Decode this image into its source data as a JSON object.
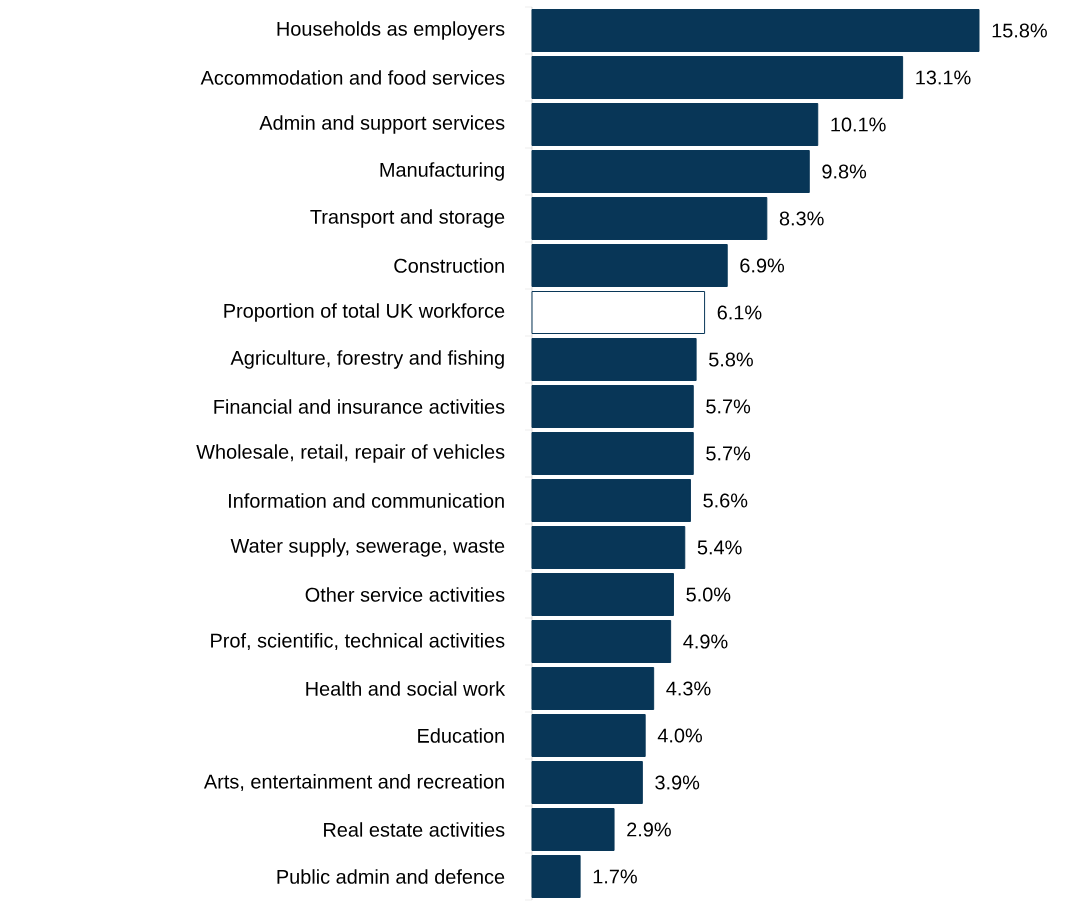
{
  "chart_data": {
    "type": "bar",
    "orientation": "horizontal",
    "categories": [
      "Households as employers",
      "Accommodation and food services",
      "Admin and support services",
      "Manufacturing",
      "Transport and storage",
      "Construction",
      "Proportion of total UK workforce",
      "Agriculture, forestry and fishing",
      "Financial and insurance activities",
      "Wholesale, retail, repair of vehicles",
      "Information and communication",
      "Water supply, sewerage, waste",
      "Other service activities",
      "Prof, scientific, technical activities",
      "Health and social work",
      "Education",
      "Arts, entertainment and recreation",
      "Real estate activities",
      "Public admin and defence"
    ],
    "values": [
      15.8,
      13.1,
      10.1,
      9.8,
      8.3,
      6.9,
      6.1,
      5.8,
      5.7,
      5.7,
      5.6,
      5.4,
      5.0,
      4.9,
      4.3,
      4.0,
      3.9,
      2.9,
      1.7
    ],
    "value_labels": [
      "15.8%",
      "13.1%",
      "10.1%",
      "9.8%",
      "8.3%",
      "6.9%",
      "6.1%",
      "5.8%",
      "5.7%",
      "5.7%",
      "5.6%",
      "5.4%",
      "5.0%",
      "4.9%",
      "4.3%",
      "4.0%",
      "3.9%",
      "2.9%",
      "1.7%"
    ],
    "colors": [
      "#083657",
      "#083657",
      "#083657",
      "#083657",
      "#083657",
      "#083657",
      "#ffffff",
      "#083657",
      "#083657",
      "#083657",
      "#083657",
      "#083657",
      "#083657",
      "#083657",
      "#083657",
      "#083657",
      "#083657",
      "#083657",
      "#083657"
    ]
  }
}
